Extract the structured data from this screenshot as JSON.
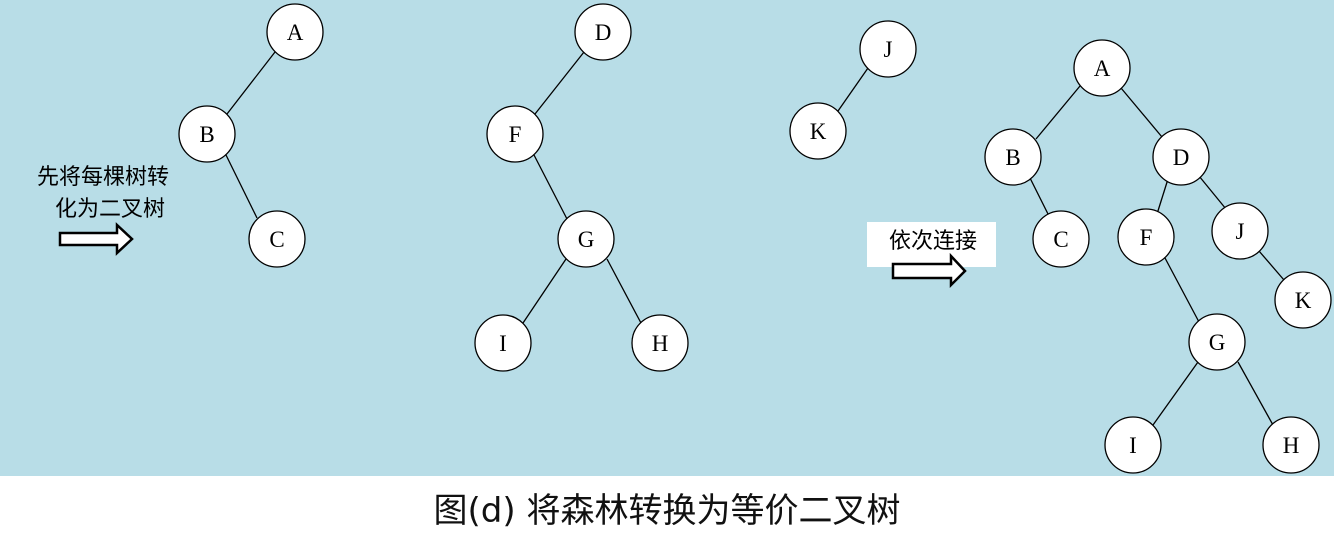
{
  "colors": {
    "panel_background": "#b8dde7",
    "node_fill": "#ffffff",
    "stroke": "#000000",
    "caption_label_bg": "#ffffff"
  },
  "step_labels": {
    "first_line1": "先将每棵树转",
    "first_line2": "化为二叉树",
    "second": "依次连接"
  },
  "caption": "图(d) 将森林转换为等价二叉树",
  "trees": [
    {
      "id": "tree-a",
      "nodes": [
        "A",
        "B",
        "C"
      ],
      "edges": [
        [
          "A",
          "B"
        ],
        [
          "B",
          "C"
        ]
      ]
    },
    {
      "id": "tree-d",
      "nodes": [
        "D",
        "F",
        "G",
        "I",
        "H"
      ],
      "edges": [
        [
          "D",
          "F"
        ],
        [
          "F",
          "G"
        ],
        [
          "G",
          "I"
        ],
        [
          "G",
          "H"
        ]
      ]
    },
    {
      "id": "tree-j",
      "nodes": [
        "J",
        "K"
      ],
      "edges": [
        [
          "J",
          "K"
        ]
      ]
    },
    {
      "id": "result",
      "nodes": [
        "A",
        "B",
        "C",
        "D",
        "F",
        "J",
        "K",
        "G",
        "I",
        "H"
      ],
      "edges": [
        [
          "A",
          "B"
        ],
        [
          "A",
          "D"
        ],
        [
          "B",
          "C"
        ],
        [
          "D",
          "F"
        ],
        [
          "D",
          "J"
        ],
        [
          "J",
          "K"
        ],
        [
          "F",
          "G"
        ],
        [
          "G",
          "I"
        ],
        [
          "G",
          "H"
        ]
      ]
    }
  ]
}
